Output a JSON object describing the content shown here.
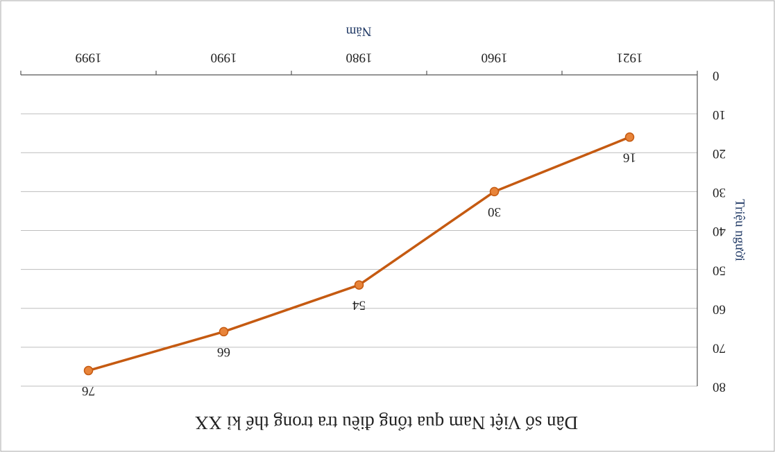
{
  "chart_data": {
    "type": "line",
    "title": "Dân số Việt Nam qua tổng điều tra trong thế kỉ XX",
    "x_label": "Năm",
    "y_label": "Triệu người",
    "categories": [
      "1921",
      "1960",
      "1980",
      "1990",
      "1999"
    ],
    "series": [
      {
        "name": "Dân số",
        "color": "#c55a11",
        "values": [
          16,
          30,
          54,
          66,
          76
        ]
      }
    ],
    "ylim": [
      0,
      80
    ],
    "yticks": [
      0,
      10,
      20,
      30,
      40,
      50,
      60,
      70,
      80
    ],
    "grid": true
  }
}
